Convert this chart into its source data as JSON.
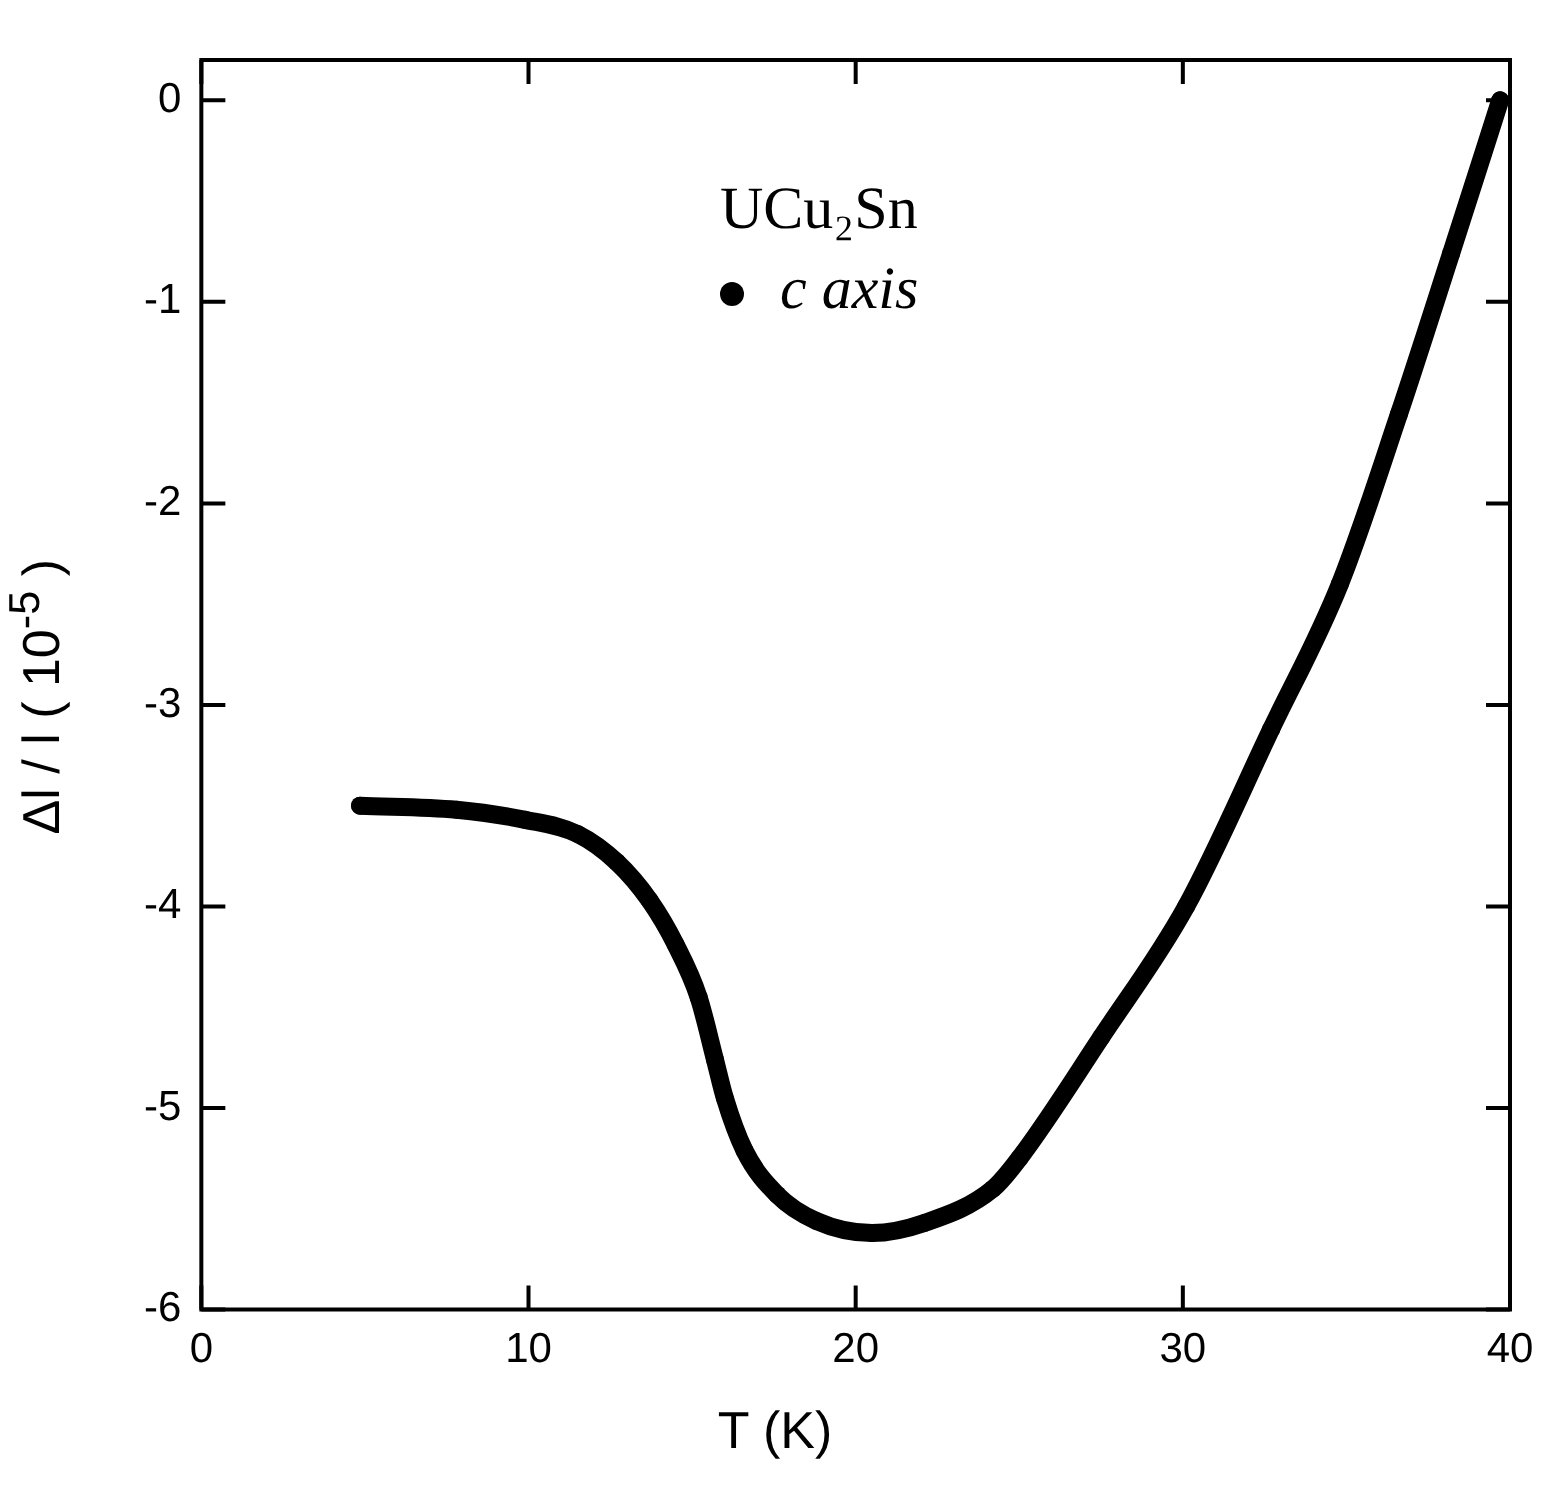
{
  "chart_data": {
    "type": "line",
    "xlabel": "T (K)",
    "ylabel": "Δl / l ( 10$^{-5}$ )",
    "legend_title": "UCu₂Sn",
    "legend": "top",
    "marker": "circle",
    "grid": false,
    "x": [
      4.85,
      7.8,
      9.9,
      11.5,
      12.7,
      13.7,
      14.5,
      15.2,
      15.7,
      16.0,
      16.6,
      17.6,
      18.8,
      20.5,
      22.1,
      24.2,
      25.0,
      27.5,
      30.1,
      32.7,
      34.8,
      36.6,
      38.2,
      39.7
    ],
    "series": [
      {
        "name": "c axis",
        "color": "#000000",
        "values": [
          -3.5,
          -3.52,
          -3.57,
          -3.64,
          -3.78,
          -3.97,
          -4.19,
          -4.45,
          -4.76,
          -4.95,
          -5.21,
          -5.43,
          -5.56,
          -5.62,
          -5.57,
          -5.4,
          -5.25,
          -4.65,
          -4.0,
          -3.12,
          -2.4,
          -1.56,
          -0.76,
          0.0
        ]
      }
    ],
    "xlim": [
      0,
      40
    ],
    "xticks": [
      0,
      10,
      20,
      30,
      40
    ],
    "ylim": [
      -6,
      0.2
    ],
    "yticks": [
      -6,
      -5,
      -4,
      -3,
      -2,
      -1,
      0
    ]
  }
}
